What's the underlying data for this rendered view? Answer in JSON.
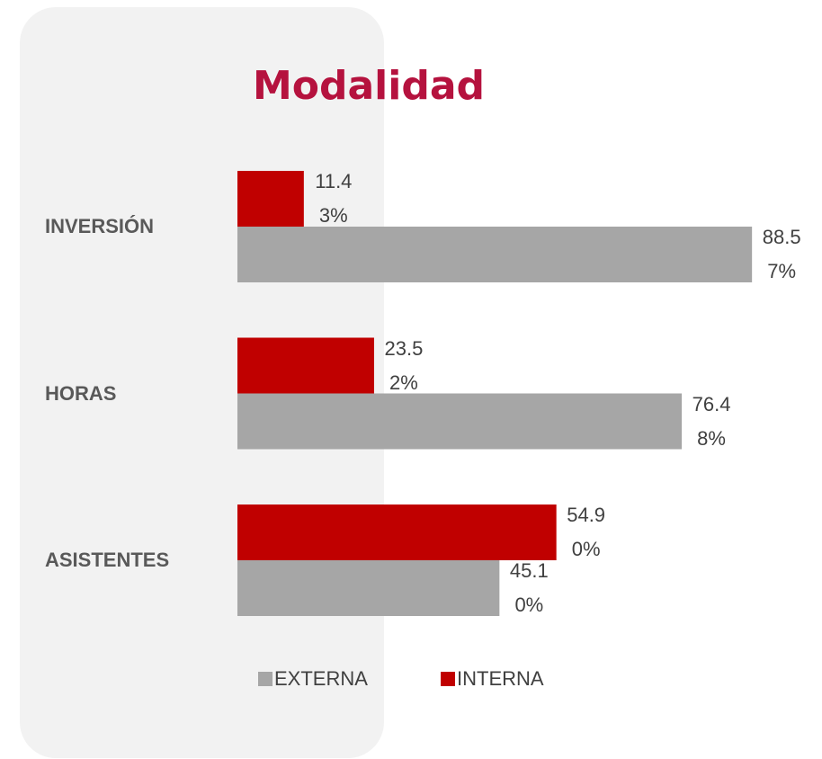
{
  "chart_data": {
    "type": "hbar",
    "title": "Modalidad",
    "categories": [
      "INVERSIÓN",
      "HORAS",
      "ASISTENTES"
    ],
    "series": [
      {
        "name": "EXTERNA",
        "color": "#a6a6a6",
        "values": [
          88.57,
          76.48,
          45.1
        ],
        "value_labels": [
          "88.57%",
          "76.48%",
          "45.10%"
        ]
      },
      {
        "name": "INTERNA",
        "color": "#c00000",
        "values": [
          11.43,
          23.52,
          54.9
        ],
        "value_labels": [
          "11.43%",
          "23.52%",
          "54.90%"
        ]
      }
    ],
    "xlim": [
      0,
      100
    ],
    "legend": "bottom"
  }
}
